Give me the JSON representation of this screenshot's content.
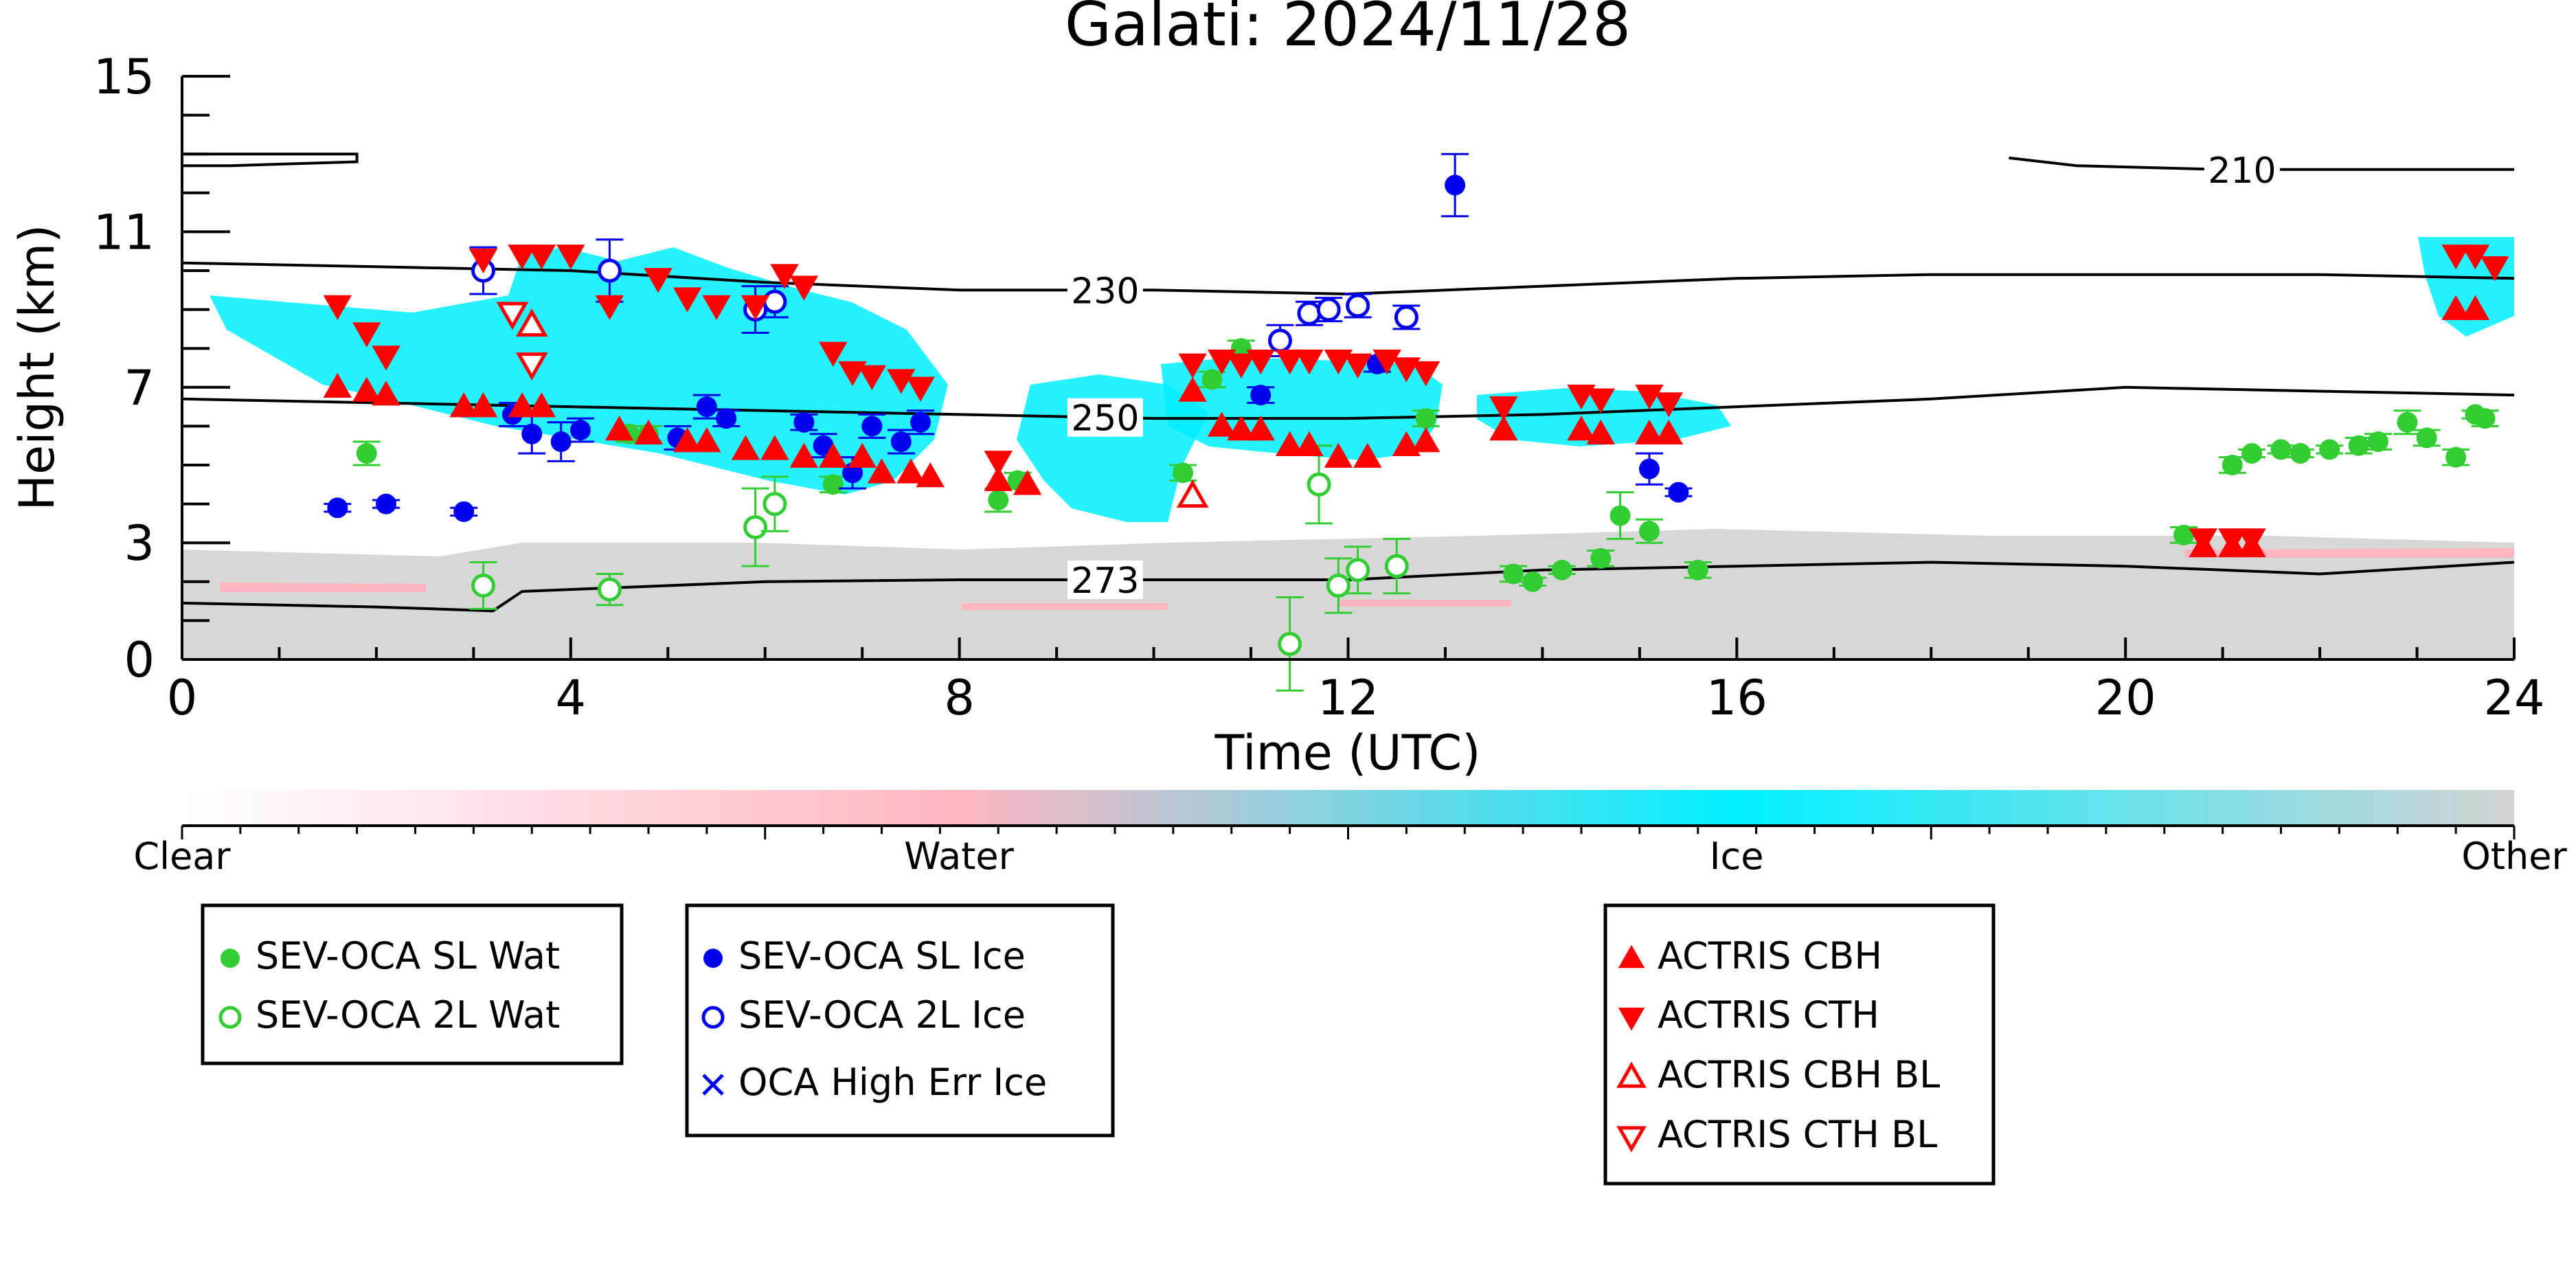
{
  "chart_data": {
    "type": "scatter",
    "title": "Galati: 2024/11/28",
    "xlabel": "Time (UTC)",
    "ylabel": "Height (km)",
    "xlim": [
      0,
      24
    ],
    "ylim": [
      0,
      15
    ],
    "xticks": [
      "0",
      "4",
      "8",
      "12",
      "16",
      "20",
      "24"
    ],
    "yticks": [
      "0",
      "3",
      "7",
      "11",
      "15"
    ],
    "colorbar": {
      "labels": [
        "Clear",
        "Water",
        "Ice",
        "Other"
      ],
      "colors": [
        "#ffffff",
        "#ffb6c1",
        "#00f0ff",
        "#d3d3d3"
      ]
    },
    "isotherms": [
      {
        "label": "210",
        "points": [
          [
            0,
            13.0
          ],
          [
            0.5,
            13.0
          ],
          [
            1.8,
            13.0
          ],
          [
            1.8,
            12.8
          ],
          [
            0.5,
            12.7
          ],
          [
            0,
            12.7
          ]
        ]
      },
      {
        "label": "210",
        "points": [
          [
            18.8,
            12.9
          ],
          [
            19.5,
            12.7
          ],
          [
            21,
            12.6
          ],
          [
            24,
            12.6
          ]
        ]
      },
      {
        "label": "230",
        "points": [
          [
            0,
            10.2
          ],
          [
            2,
            10.1
          ],
          [
            4,
            10.0
          ],
          [
            6,
            9.7
          ],
          [
            8,
            9.5
          ],
          [
            10,
            9.5
          ],
          [
            12,
            9.4
          ],
          [
            14,
            9.6
          ],
          [
            16,
            9.8
          ],
          [
            18,
            9.9
          ],
          [
            20,
            9.9
          ],
          [
            22,
            9.9
          ],
          [
            24,
            9.8
          ]
        ]
      },
      {
        "label": "250",
        "points": [
          [
            0,
            6.7
          ],
          [
            2,
            6.6
          ],
          [
            4,
            6.5
          ],
          [
            6,
            6.4
          ],
          [
            8,
            6.3
          ],
          [
            10,
            6.2
          ],
          [
            12,
            6.2
          ],
          [
            14,
            6.3
          ],
          [
            16,
            6.5
          ],
          [
            18,
            6.7
          ],
          [
            20,
            7.0
          ],
          [
            22,
            6.9
          ],
          [
            24,
            6.8
          ]
        ]
      },
      {
        "label": "273",
        "points": [
          [
            0,
            1.45
          ],
          [
            2,
            1.35
          ],
          [
            3.2,
            1.25
          ],
          [
            3.5,
            1.75
          ],
          [
            6,
            2.0
          ],
          [
            8,
            2.05
          ],
          [
            9.5,
            2.05
          ],
          [
            10,
            2.05
          ],
          [
            12,
            2.05
          ],
          [
            14,
            2.3
          ],
          [
            16,
            2.4
          ],
          [
            18,
            2.5
          ],
          [
            20,
            2.4
          ],
          [
            22,
            2.2
          ],
          [
            24,
            2.5
          ]
        ]
      }
    ],
    "series": [
      {
        "name": "SEV-OCA SL Wat",
        "marker": "circle-filled",
        "color": "#32cd32",
        "x": [
          1.9,
          4.6,
          4.8,
          6.7,
          8.4,
          8.6,
          10.3,
          10.6,
          10.9,
          12.8,
          13.7,
          13.9,
          14.2,
          14.6,
          14.8,
          15.1,
          15.6,
          20.6,
          21.1,
          21.3,
          21.6,
          21.8,
          22.1,
          22.4,
          22.6,
          22.9,
          23.1,
          23.4,
          23.6,
          23.7
        ],
        "y": [
          5.3,
          5.8,
          5.8,
          4.5,
          4.1,
          4.6,
          4.8,
          7.2,
          8.0,
          6.2,
          2.2,
          2.0,
          2.3,
          2.6,
          3.7,
          3.3,
          2.3,
          3.2,
          5.0,
          5.3,
          5.4,
          5.3,
          5.4,
          5.5,
          5.6,
          6.1,
          5.7,
          5.2,
          6.3,
          6.2
        ],
        "yerr": [
          0.3,
          0.2,
          0.2,
          0.2,
          0.3,
          0.2,
          0.2,
          0.2,
          0.2,
          0.2,
          0.2,
          0.1,
          0.1,
          0.2,
          0.6,
          0.3,
          0.2,
          0.2,
          0.2,
          0.1,
          0.1,
          0.1,
          0.1,
          0.2,
          0.2,
          0.3,
          0.2,
          0.2,
          0.1,
          0.2
        ]
      },
      {
        "name": "SEV-OCA 2L Wat",
        "marker": "circle-open",
        "color": "#32cd32",
        "x": [
          3.1,
          4.4,
          5.9,
          6.1,
          11.4,
          11.7,
          11.9,
          12.1,
          12.5
        ],
        "y": [
          1.9,
          1.8,
          3.4,
          4.0,
          0.4,
          4.5,
          1.9,
          2.3,
          2.4
        ],
        "yerr": [
          0.6,
          0.4,
          1.0,
          0.7,
          1.2,
          1.0,
          0.7,
          0.6,
          0.7
        ]
      },
      {
        "name": "SEV-OCA SL Ice",
        "marker": "circle-filled",
        "color": "#0000ee",
        "x": [
          1.6,
          2.1,
          2.9,
          3.4,
          3.6,
          3.9,
          4.1,
          5.1,
          5.4,
          5.6,
          6.4,
          6.6,
          6.9,
          7.1,
          7.4,
          7.6,
          11.1,
          12.3,
          13.1,
          15.1,
          15.4
        ],
        "y": [
          3.9,
          4.0,
          3.8,
          6.3,
          5.8,
          5.6,
          5.9,
          5.7,
          6.5,
          6.2,
          6.1,
          5.5,
          4.8,
          6.0,
          5.6,
          6.1,
          6.8,
          7.6,
          12.2,
          4.9,
          4.3
        ],
        "yerr": [
          0.1,
          0.1,
          0.1,
          0.3,
          0.5,
          0.5,
          0.3,
          0.3,
          0.3,
          0.2,
          0.2,
          0.3,
          0.4,
          0.3,
          0.3,
          0.3,
          0.2,
          0.2,
          0.8,
          0.4,
          0.1
        ]
      },
      {
        "name": "SEV-OCA 2L Ice",
        "marker": "circle-open",
        "color": "#0000ee",
        "x": [
          3.1,
          4.4,
          5.9,
          6.1,
          11.3,
          11.6,
          11.8,
          12.1,
          12.6
        ],
        "y": [
          10.0,
          10.0,
          9.0,
          9.2,
          8.2,
          8.9,
          9.0,
          9.1,
          8.8
        ],
        "yerr": [
          0.6,
          0.8,
          0.6,
          0.4,
          0.4,
          0.3,
          0.3,
          0.3,
          0.3
        ]
      },
      {
        "name": "OCA High Err Ice",
        "marker": "x",
        "color": "#0000ee",
        "x": [],
        "y": []
      },
      {
        "name": "ACTRIS CBH",
        "marker": "triangle-up-filled",
        "color": "#ff0000",
        "x": [
          1.6,
          1.9,
          2.1,
          2.9,
          3.1,
          3.5,
          3.7,
          4.5,
          4.8,
          5.2,
          5.4,
          5.8,
          6.1,
          6.4,
          6.7,
          7.0,
          7.2,
          7.5,
          7.7,
          8.4,
          8.7,
          10.4,
          10.7,
          10.9,
          11.1,
          11.4,
          11.6,
          11.9,
          12.2,
          12.6,
          12.8,
          13.6,
          14.4,
          14.6,
          15.1,
          15.3,
          20.8,
          21.1,
          21.3,
          23.4,
          23.6
        ],
        "y": [
          7.0,
          6.9,
          6.8,
          6.5,
          6.5,
          6.5,
          6.5,
          5.9,
          5.8,
          5.6,
          5.6,
          5.4,
          5.4,
          5.2,
          5.2,
          5.2,
          4.8,
          4.8,
          4.7,
          4.6,
          4.5,
          6.9,
          6.0,
          5.9,
          5.9,
          5.5,
          5.5,
          5.2,
          5.2,
          5.5,
          5.6,
          5.9,
          5.9,
          5.8,
          5.8,
          5.8,
          2.9,
          2.9,
          2.9,
          9.0,
          9.0
        ]
      },
      {
        "name": "ACTRIS CTH",
        "marker": "triangle-down-filled",
        "color": "#ff0000",
        "x": [
          1.6,
          1.9,
          2.1,
          3.1,
          3.5,
          3.7,
          4.0,
          4.4,
          4.9,
          5.2,
          5.5,
          5.9,
          6.2,
          6.4,
          6.7,
          6.9,
          7.1,
          7.4,
          7.6,
          8.4,
          10.4,
          10.7,
          10.9,
          11.1,
          11.4,
          11.6,
          11.9,
          12.1,
          12.4,
          12.6,
          12.8,
          13.6,
          14.4,
          14.6,
          15.1,
          15.3,
          20.8,
          21.1,
          21.3,
          23.4,
          23.6,
          23.8
        ],
        "y": [
          9.1,
          8.4,
          7.8,
          10.3,
          10.4,
          10.4,
          10.4,
          9.1,
          9.8,
          9.3,
          9.1,
          9.1,
          9.9,
          9.6,
          7.9,
          7.4,
          7.3,
          7.2,
          7.0,
          5.1,
          7.6,
          7.7,
          7.6,
          7.7,
          7.7,
          7.7,
          7.7,
          7.6,
          7.7,
          7.5,
          7.4,
          6.5,
          6.8,
          6.7,
          6.8,
          6.6,
          3.1,
          3.1,
          3.1,
          10.4,
          10.4,
          10.1
        ]
      },
      {
        "name": "ACTRIS CBH BL",
        "marker": "triangle-up-open",
        "color": "#ff0000",
        "x": [
          3.6,
          10.4
        ],
        "y": [
          8.6,
          4.2
        ]
      },
      {
        "name": "ACTRIS CTH BL",
        "marker": "triangle-down-open",
        "color": "#ff0000",
        "x": [
          3.4,
          3.6
        ],
        "y": [
          8.9,
          7.6
        ]
      }
    ]
  }
}
